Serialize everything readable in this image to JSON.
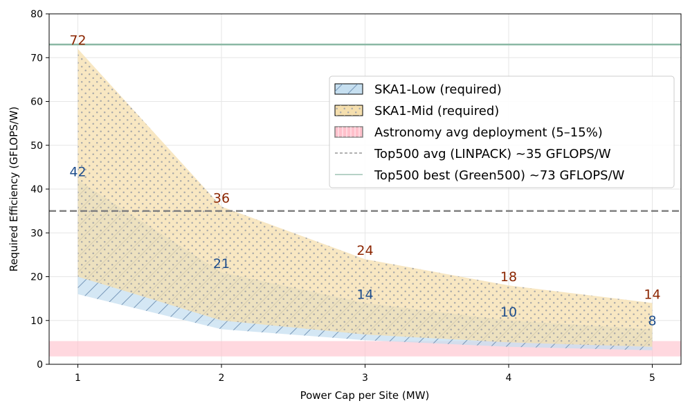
{
  "chart_data": {
    "type": "area",
    "xlabel": "Power Cap per Site (MW)",
    "ylabel": "Required Efficiency (GFLOPS/W)",
    "xlim": [
      0.8,
      5.2
    ],
    "ylim": [
      0,
      80
    ],
    "x_ticks": [
      "1",
      "2",
      "3",
      "4",
      "5"
    ],
    "y_ticks": [
      "0",
      "10",
      "20",
      "30",
      "40",
      "50",
      "60",
      "70",
      "80"
    ],
    "grid": true,
    "legend_position": "upper-right",
    "x": [
      1,
      2,
      3,
      4,
      5
    ],
    "series": [
      {
        "name": "SKA1-Low (required)",
        "lower": [
          16,
          8,
          5.5,
          4,
          3.2
        ],
        "upper": [
          42,
          21,
          14,
          10,
          8
        ],
        "label_values": [
          "42",
          "21",
          "14",
          "10",
          "8"
        ],
        "fill_color": "#c6dff0",
        "hatch": "diagonal",
        "label_color": "#1f4e8c"
      },
      {
        "name": "SKA1-Mid (required)",
        "lower": [
          20,
          10,
          6.8,
          5,
          4
        ],
        "upper": [
          72,
          36,
          24,
          18,
          14
        ],
        "label_values": [
          "72",
          "36",
          "24",
          "18",
          "14"
        ],
        "fill_color": "#f5dfae",
        "hatch": "dots",
        "label_color": "#8b2500"
      }
    ],
    "band": {
      "name": "Astronomy avg deployment (5–15%)",
      "range": [
        1.8,
        5.3
      ],
      "color": "#ffc0cb"
    },
    "reference_lines": [
      {
        "name": "Top500 avg (LINPACK) ~35 GFLOPS/W",
        "value": 35,
        "color": "#808080",
        "style": "dashed"
      },
      {
        "name": "Top500 best (Green500) ~73 GFLOPS/W",
        "value": 73,
        "color": "#8ab8a4",
        "style": "solid"
      }
    ]
  }
}
